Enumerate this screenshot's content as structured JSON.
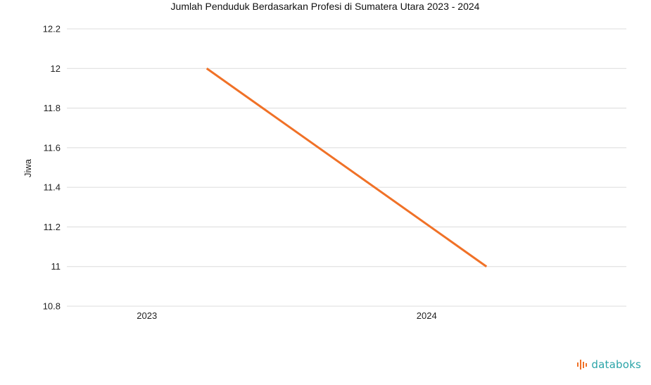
{
  "chart_data": {
    "type": "line",
    "title": "Jumlah Penduduk Berdasarkan Profesi di Sumatera Utara 2023 - 2024",
    "xlabel": "",
    "ylabel": "Jiwa",
    "categories": [
      "2023",
      "2024"
    ],
    "series": [
      {
        "values": [
          12,
          11
        ],
        "color": "#f07127"
      }
    ],
    "ylim": [
      10.8,
      12.2
    ],
    "yticks": [
      "10.8",
      "11",
      "11.2",
      "11.4",
      "11.6",
      "11.8",
      "12",
      "12.2"
    ],
    "grid": true
  },
  "brand": {
    "logo_text": "databoks",
    "logo_color": "#2aa4a8",
    "logo_accent": "#f07127"
  }
}
